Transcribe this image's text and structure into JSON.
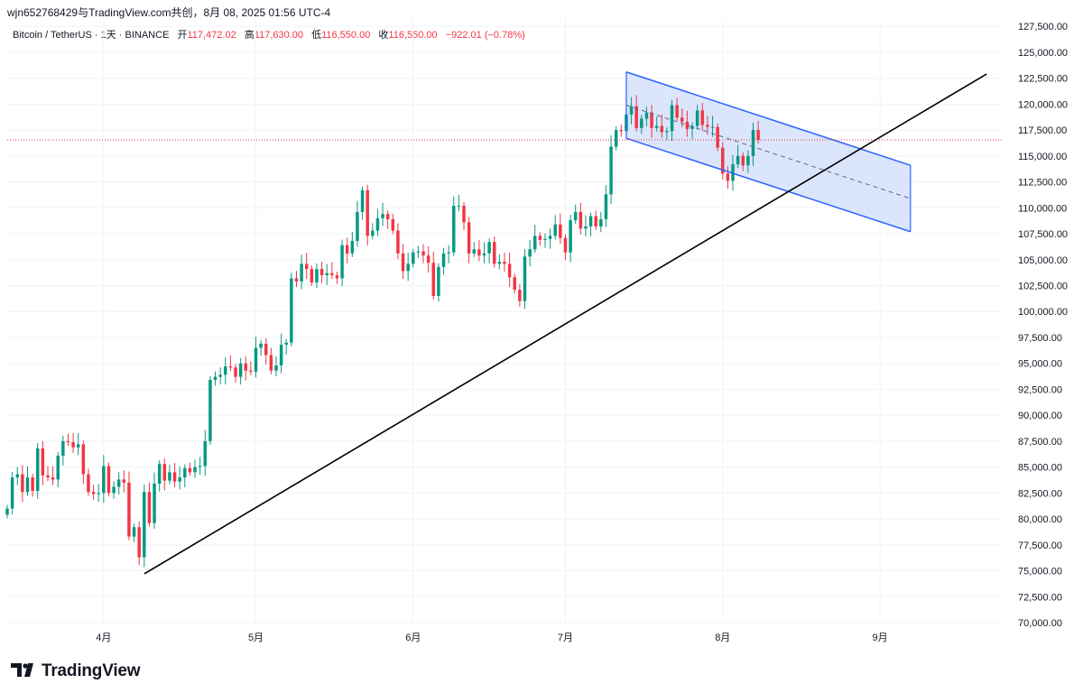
{
  "header": {
    "snapshot_line": "wjn652768429与TradingView.com共创，8月 08, 2025 01:56 UTC-4"
  },
  "legend": {
    "symbol": "Bitcoin / TetherUS · 1天 · BINANCE",
    "open_label": "开",
    "open_value": "117,472.02",
    "high_label": "高",
    "high_value": "117,630.00",
    "low_label": "低",
    "low_value": "116,550.00",
    "close_label": "收",
    "close_value": "116,550.00",
    "change": "−922.01 (−0.78%)"
  },
  "brand": {
    "name": "TradingView"
  },
  "colors": {
    "up": "#089981",
    "down": "#f23645",
    "trendline": "#000000",
    "channel_fill": "#cfdcfb",
    "channel_border": "#2962ff",
    "last_price_line": "#f23645",
    "grid": "#f0f3fa",
    "axis_text": "#131722"
  },
  "chart_data": {
    "type": "candlestick",
    "symbol": "Bitcoin / TetherUS",
    "interval": "1天",
    "exchange": "BINANCE",
    "price_axis": {
      "ticks": [
        "127,500.00",
        "125,000.00",
        "122,500.00",
        "120,000.00",
        "117,500.00",
        "115,000.00",
        "112,500.00",
        "110,000.00",
        "107,500.00",
        "105,000.00",
        "102,500.00",
        "100,000.00",
        "97,500.00",
        "95,000.00",
        "92,500.00",
        "90,000.00",
        "87,500.00",
        "85,000.00",
        "82,500.00",
        "80,000.00",
        "77,500.00",
        "75,000.00",
        "72,500.00",
        "70,000.00"
      ],
      "range": [
        70000,
        128300
      ]
    },
    "time_axis": {
      "ticks": [
        {
          "label": "4月",
          "date": "2025-04-01"
        },
        {
          "label": "5月",
          "date": "2025-05-01"
        },
        {
          "label": "6月",
          "date": "2025-06-01"
        },
        {
          "label": "7月",
          "date": "2025-07-01"
        },
        {
          "label": "8月",
          "date": "2025-08-01"
        },
        {
          "label": "9月",
          "date": "2025-09-01"
        }
      ],
      "range": [
        "2025-03-13",
        "2025-09-25"
      ]
    },
    "grid": true,
    "last_price": 116550,
    "closes": [
      [
        "2025-03-13",
        81000
      ],
      [
        "2025-03-14",
        84000
      ],
      [
        "2025-03-15",
        84300
      ],
      [
        "2025-03-16",
        82600
      ],
      [
        "2025-03-17",
        84000
      ],
      [
        "2025-03-18",
        82700
      ],
      [
        "2025-03-19",
        86800
      ],
      [
        "2025-03-20",
        84200
      ],
      [
        "2025-03-21",
        84000
      ],
      [
        "2025-03-22",
        83800
      ],
      [
        "2025-03-23",
        86100
      ],
      [
        "2025-03-24",
        87500
      ],
      [
        "2025-03-25",
        87400
      ],
      [
        "2025-03-26",
        86900
      ],
      [
        "2025-03-27",
        87200
      ],
      [
        "2025-03-28",
        84300
      ],
      [
        "2025-03-29",
        82600
      ],
      [
        "2025-03-30",
        82400
      ],
      [
        "2025-03-31",
        82500
      ],
      [
        "2025-04-01",
        85100
      ],
      [
        "2025-04-02",
        82500
      ],
      [
        "2025-04-03",
        83100
      ],
      [
        "2025-04-04",
        83800
      ],
      [
        "2025-04-05",
        83500
      ],
      [
        "2025-04-06",
        78300
      ],
      [
        "2025-04-07",
        79200
      ],
      [
        "2025-04-08",
        76300
      ],
      [
        "2025-04-09",
        82600
      ],
      [
        "2025-04-10",
        79600
      ],
      [
        "2025-04-11",
        83400
      ],
      [
        "2025-04-12",
        85300
      ],
      [
        "2025-04-13",
        83700
      ],
      [
        "2025-04-14",
        84500
      ],
      [
        "2025-04-15",
        83600
      ],
      [
        "2025-04-16",
        84000
      ],
      [
        "2025-04-17",
        84900
      ],
      [
        "2025-04-18",
        84500
      ],
      [
        "2025-04-19",
        85000
      ],
      [
        "2025-04-20",
        85100
      ],
      [
        "2025-04-21",
        87500
      ],
      [
        "2025-04-22",
        93400
      ],
      [
        "2025-04-23",
        93700
      ],
      [
        "2025-04-24",
        93900
      ],
      [
        "2025-04-25",
        94700
      ],
      [
        "2025-04-26",
        94600
      ],
      [
        "2025-04-27",
        93700
      ],
      [
        "2025-04-28",
        95000
      ],
      [
        "2025-04-29",
        94300
      ],
      [
        "2025-04-30",
        94200
      ],
      [
        "2025-05-01",
        96500
      ],
      [
        "2025-05-02",
        96900
      ],
      [
        "2025-05-03",
        95800
      ],
      [
        "2025-05-04",
        94300
      ],
      [
        "2025-05-05",
        94800
      ],
      [
        "2025-05-06",
        96800
      ],
      [
        "2025-05-07",
        97000
      ],
      [
        "2025-05-08",
        103200
      ],
      [
        "2025-05-09",
        102900
      ],
      [
        "2025-05-10",
        104600
      ],
      [
        "2025-05-11",
        104100
      ],
      [
        "2025-05-12",
        102800
      ],
      [
        "2025-05-13",
        104100
      ],
      [
        "2025-05-14",
        103500
      ],
      [
        "2025-05-15",
        103700
      ],
      [
        "2025-05-16",
        103500
      ],
      [
        "2025-05-17",
        103200
      ],
      [
        "2025-05-18",
        106400
      ],
      [
        "2025-05-19",
        105600
      ],
      [
        "2025-05-20",
        106800
      ],
      [
        "2025-05-21",
        109600
      ],
      [
        "2025-05-22",
        111700
      ],
      [
        "2025-05-23",
        107300
      ],
      [
        "2025-05-24",
        107800
      ],
      [
        "2025-05-25",
        109000
      ],
      [
        "2025-05-26",
        109400
      ],
      [
        "2025-05-27",
        108900
      ],
      [
        "2025-05-28",
        107800
      ],
      [
        "2025-05-29",
        105600
      ],
      [
        "2025-05-30",
        103900
      ],
      [
        "2025-05-31",
        104600
      ],
      [
        "2025-06-01",
        105700
      ],
      [
        "2025-06-02",
        105800
      ],
      [
        "2025-06-03",
        105400
      ],
      [
        "2025-06-04",
        104700
      ],
      [
        "2025-06-05",
        101500
      ],
      [
        "2025-06-06",
        104300
      ],
      [
        "2025-06-07",
        105600
      ],
      [
        "2025-06-08",
        105700
      ],
      [
        "2025-06-09",
        110200
      ],
      [
        "2025-06-10",
        110200
      ],
      [
        "2025-06-11",
        108600
      ],
      [
        "2025-06-12",
        105600
      ],
      [
        "2025-06-13",
        106000
      ],
      [
        "2025-06-14",
        105400
      ],
      [
        "2025-06-15",
        105600
      ],
      [
        "2025-06-16",
        106700
      ],
      [
        "2025-06-17",
        104600
      ],
      [
        "2025-06-18",
        104800
      ],
      [
        "2025-06-19",
        104600
      ],
      [
        "2025-06-20",
        103300
      ],
      [
        "2025-06-21",
        102100
      ],
      [
        "2025-06-22",
        101000
      ],
      [
        "2025-06-23",
        105300
      ],
      [
        "2025-06-24",
        106000
      ],
      [
        "2025-06-25",
        107300
      ],
      [
        "2025-06-26",
        106900
      ],
      [
        "2025-06-27",
        107000
      ],
      [
        "2025-06-28",
        107300
      ],
      [
        "2025-06-29",
        108400
      ],
      [
        "2025-06-30",
        107100
      ],
      [
        "2025-07-01",
        105700
      ],
      [
        "2025-07-02",
        108800
      ],
      [
        "2025-07-03",
        109600
      ],
      [
        "2025-07-04",
        108000
      ],
      [
        "2025-07-05",
        108200
      ],
      [
        "2025-07-06",
        109200
      ],
      [
        "2025-07-07",
        108200
      ],
      [
        "2025-07-08",
        108900
      ],
      [
        "2025-07-09",
        111300
      ],
      [
        "2025-07-10",
        115900
      ],
      [
        "2025-07-11",
        117500
      ],
      [
        "2025-07-12",
        117400
      ],
      [
        "2025-07-13",
        119000
      ],
      [
        "2025-07-14",
        119800
      ],
      [
        "2025-07-15",
        117700
      ],
      [
        "2025-07-16",
        118600
      ],
      [
        "2025-07-17",
        119200
      ],
      [
        "2025-07-18",
        117700
      ],
      [
        "2025-07-19",
        117900
      ],
      [
        "2025-07-20",
        117300
      ],
      [
        "2025-07-21",
        117400
      ],
      [
        "2025-07-22",
        119900
      ],
      [
        "2025-07-23",
        118700
      ],
      [
        "2025-07-24",
        118300
      ],
      [
        "2025-07-25",
        117600
      ],
      [
        "2025-07-26",
        117900
      ],
      [
        "2025-07-27",
        119400
      ],
      [
        "2025-07-28",
        118000
      ],
      [
        "2025-07-29",
        117800
      ],
      [
        "2025-07-30",
        117800
      ],
      [
        "2025-07-31",
        115800
      ],
      [
        "2025-08-01",
        113300
      ],
      [
        "2025-08-02",
        112600
      ],
      [
        "2025-08-03",
        114200
      ],
      [
        "2025-08-04",
        115000
      ],
      [
        "2025-08-05",
        114100
      ],
      [
        "2025-08-06",
        115000
      ],
      [
        "2025-08-07",
        117500
      ],
      [
        "2025-08-08",
        116550
      ]
    ],
    "drawings": [
      {
        "type": "trendline",
        "points": [
          [
            "2025-04-09",
            74700
          ],
          [
            "2025-09-22",
            122900
          ]
        ]
      },
      {
        "type": "parallel_channel",
        "upper": [
          [
            "2025-07-13",
            123100
          ],
          [
            "2025-09-07",
            114100
          ]
        ],
        "lower": [
          [
            "2025-07-13",
            116700
          ],
          [
            "2025-09-07",
            107700
          ]
        ],
        "middle_dashed": true
      }
    ]
  }
}
